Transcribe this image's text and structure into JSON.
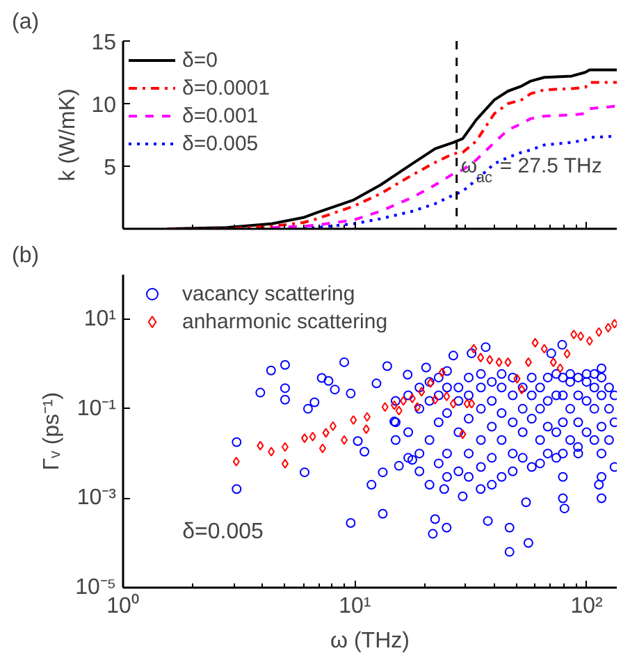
{
  "chart_data": [
    {
      "type": "line",
      "title": "(a)",
      "ylabel": "k (W/mK)",
      "log": "x",
      "xlim": [
        1,
        135
      ],
      "ylim": [
        0,
        15
      ],
      "xticks": [
        {
          "value": 1,
          "label": null
        },
        {
          "value": 10,
          "label": null
        },
        {
          "value": 100,
          "label": null
        }
      ],
      "yticks": [
        5,
        10,
        15
      ],
      "tick_labels": "y",
      "grid": false,
      "legend": "top left",
      "x": [
        1.55,
        2.79,
        4.38,
        6.0,
        6.87,
        9.87,
        12.9,
        17.7,
        22.2,
        26.6,
        29.2,
        33.4,
        40,
        45.8,
        52.4,
        57.4,
        65.7,
        86.2,
        98.7,
        103,
        135
      ],
      "series": [
        {
          "name": "δ=0",
          "color": "#000000",
          "line_style": "solid",
          "values": [
            0,
            0.1,
            0.4,
            0.9,
            1.3,
            2.3,
            3.5,
            5.2,
            6.4,
            6.9,
            7.2,
            8.7,
            10.3,
            11.0,
            11.4,
            11.8,
            12.1,
            12.2,
            12.5,
            12.7,
            12.7
          ]
        },
        {
          "name": "δ=0.0001",
          "color": "#ff0000",
          "line_style": "dashdot",
          "values": [
            0,
            0,
            0.2,
            0.5,
            0.8,
            1.8,
            2.8,
            4.3,
            5.3,
            6.0,
            6.1,
            7.0,
            9.2,
            10.0,
            10.3,
            10.8,
            11.1,
            11.2,
            11.3,
            11.7,
            11.7
          ]
        },
        {
          "name": "δ=0.001",
          "color": "#ff00ff",
          "line_style": "dashed",
          "values": [
            null,
            null,
            0.1,
            0.2,
            0.3,
            0.7,
            1.4,
            2.5,
            3.5,
            4.4,
            4.7,
            5.5,
            6.9,
            7.9,
            8.4,
            8.8,
            9.0,
            9.1,
            9.2,
            9.6,
            9.8
          ]
        },
        {
          "name": "δ=0.005",
          "color": "#0000ff",
          "line_style": "dotted",
          "values": [
            null,
            null,
            null,
            0,
            0.1,
            0.4,
            0.8,
            1.4,
            2.0,
            2.7,
            3.0,
            3.9,
            5.2,
            5.7,
            6.1,
            6.3,
            6.7,
            6.9,
            7.1,
            7.3,
            7.4
          ]
        }
      ],
      "ref_lines": [
        {
          "axis": "x",
          "value": 27.5,
          "label": "ω$_{ac}$ = 27.5 THz",
          "color": "#000000",
          "line_style": "dashed"
        }
      ]
    },
    {
      "type": "scatter",
      "title": "(b)",
      "xlabel": "ω (THz)",
      "ylabel": "Γᵥ (ps⁻¹)",
      "log": "xy",
      "xlim": [
        1,
        135
      ],
      "ylim": [
        1e-05,
        100
      ],
      "xticks": [
        {
          "value": 1,
          "label": "10⁰"
        },
        {
          "value": 10,
          "label": "10¹"
        },
        {
          "value": 100,
          "label": "10²"
        }
      ],
      "yticks": [
        {
          "value": 1e-05,
          "label": "10⁻⁵"
        },
        {
          "value": 0.001,
          "label": "10⁻³"
        },
        {
          "value": 0.1,
          "label": "10⁻¹"
        },
        {
          "value": 10,
          "label": "10¹"
        }
      ],
      "grid": false,
      "legend": "top left",
      "annotations": [
        "δ=0.005"
      ],
      "series": [
        {
          "name": "vacancy scattering",
          "color": "#0000ff",
          "marker": "circle",
          "x": [
            3.09,
            3.09,
            3.91,
            4.35,
            5.0,
            5.0,
            5.0,
            6.07,
            6.28,
            6.7,
            7.2,
            7.7,
            8.2,
            9.0,
            9.6,
            9.6,
            10.3,
            11.0,
            11.8,
            12.4,
            13.2,
            13.2,
            13.8,
            14.8,
            15.5,
            16.9,
            17.7,
            20.3,
            21.7,
            22.2,
            24.3,
            24.9,
            26.6,
            29.2,
            31.9,
            34.9,
            36.7,
            37.5,
            46.5,
            46.5,
            56.1,
            54.8,
            70.4,
            78.5,
            80.3,
            91.8,
            113,
            15,
            15,
            15,
            17,
            17,
            17,
            19,
            19,
            19,
            19,
            21,
            21,
            21,
            21,
            23,
            23,
            23,
            23,
            25,
            25,
            25,
            25,
            25,
            28,
            28,
            28,
            28,
            31,
            31,
            31,
            31,
            31,
            35,
            35,
            35,
            35,
            35,
            39,
            39,
            39,
            39,
            39,
            43,
            43,
            43,
            43,
            43,
            48,
            48,
            48,
            48,
            48,
            53,
            53,
            53,
            53,
            58,
            58,
            58,
            58,
            63,
            63,
            63,
            63,
            68,
            68,
            68,
            68,
            74,
            74,
            74,
            74,
            79,
            79,
            79,
            79,
            79,
            79,
            85,
            85,
            85,
            85,
            92,
            92,
            92,
            92,
            100,
            100,
            100,
            100,
            108,
            108,
            108,
            108,
            116,
            116,
            116,
            116,
            116,
            116,
            116,
            125,
            125,
            125,
            132,
            132,
            132
          ],
          "values": [
            0.018,
            0.0016,
            0.23,
            0.72,
            0.96,
            0.29,
            0.16,
            0.0038,
            0.1,
            0.14,
            0.49,
            0.42,
            0.27,
            1.1,
            0.00028,
            0.22,
            0.019,
            0.011,
            0.002,
            0.37,
            0.00045,
            0.0038,
            0.9,
            0.052,
            0.0053,
            0.58,
            0.0072,
            0.84,
            0.00016,
            0.00034,
            0.0016,
            0.00022,
            1.55,
            0.0011,
            1.74,
            0.0016,
            2.4,
            0.00031,
            0.00022,
            6.3e-05,
            0.0001,
            0.00081,
            1.74,
            2.7,
            0.00059,
            0.014,
            0.002,
            0.05,
            0.15,
            0.02,
            0.03,
            0.2,
            0.008,
            0.1,
            0.3,
            0.01,
            0.004,
            0.02,
            0.15,
            0.4,
            0.002,
            0.05,
            0.2,
            0.006,
            0.5,
            0.01,
            0.08,
            0.3,
            0.003,
            0.7,
            0.03,
            0.15,
            0.004,
            0.3,
            0.01,
            0.06,
            0.2,
            0.5,
            0.003,
            0.02,
            0.1,
            0.3,
            0.005,
            0.6,
            0.008,
            0.04,
            0.15,
            0.4,
            0.002,
            0.003,
            0.02,
            0.08,
            0.3,
            0.6,
            0.01,
            0.05,
            0.2,
            0.5,
            0.004,
            0.03,
            0.1,
            0.3,
            0.008,
            0.005,
            0.06,
            0.2,
            0.5,
            0.02,
            0.1,
            0.3,
            0.006,
            0.04,
            0.15,
            0.5,
            0.01,
            0.03,
            0.2,
            0.6,
            0.008,
            0.001,
            0.003,
            0.01,
            0.05,
            0.2,
            0.5,
            0.02,
            0.1,
            0.4,
            0.6,
            0.01,
            0.05,
            0.2,
            0.5,
            0.03,
            0.15,
            0.4,
            0.6,
            0.02,
            0.1,
            0.3,
            0.6,
            0.001,
            0.003,
            0.01,
            0.04,
            0.2,
            0.5,
            0.8,
            0.02,
            0.1,
            0.3,
            0.005,
            0.05,
            0.2
          ]
        },
        {
          "name": "anharmonic scattering",
          "color": "#ff0000",
          "marker": "diamond",
          "x": [
            3.08,
            3.91,
            4.36,
            5.0,
            5.0,
            6.07,
            6.58,
            7.26,
            7.5,
            8.05,
            9.0,
            9.86,
            11.2,
            11.3,
            13.5,
            14.8,
            15.5,
            16.2,
            17.7,
            18.6,
            19.4,
            21.2,
            22.2,
            23.8,
            24.9,
            26.6,
            29.2,
            30.5,
            31.9,
            32.6,
            34.9,
            38.2,
            41.9,
            45.8,
            50.1,
            52.5,
            56.1,
            60,
            65.7,
            71.9,
            76.9,
            82.4,
            88.1,
            94.3,
            103,
            113,
            124,
            132
          ],
          "values": [
            0.0066,
            0.015,
            0.011,
            0.014,
            0.0059,
            0.022,
            0.024,
            0.013,
            0.029,
            0.041,
            0.02,
            0.056,
            0.035,
            0.066,
            0.11,
            0.12,
            0.091,
            0.15,
            0.17,
            0.11,
            0.24,
            0.38,
            0.16,
            0.65,
            0.19,
            0.13,
            0.027,
            0.13,
            0.13,
            2.2,
            1.4,
            1.25,
            1.1,
            1.1,
            0.47,
            0.27,
            1.1,
            3.0,
            2.2,
            1.1,
            0.81,
            1.7,
            4.6,
            4.2,
            3.3,
            5.2,
            6.5,
            8.0
          ]
        }
      ]
    }
  ]
}
